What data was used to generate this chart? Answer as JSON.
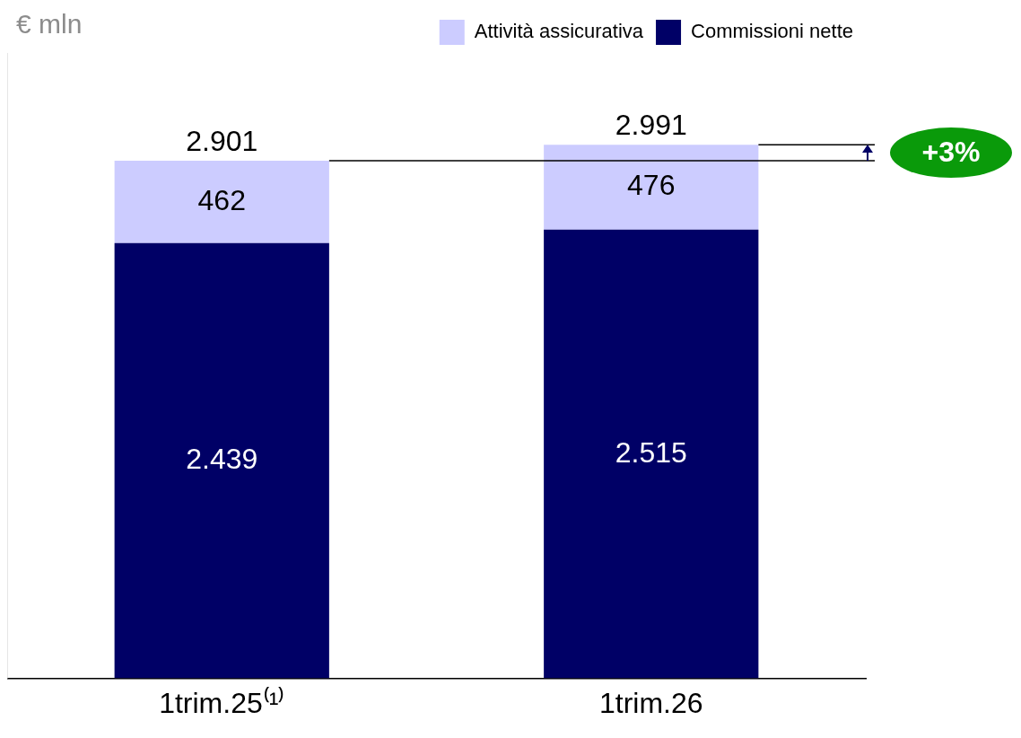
{
  "chart_data": {
    "type": "bar",
    "ylabel": "€ mln",
    "categories": [
      "1trim.25⁽¹⁾",
      "1trim.26"
    ],
    "stacked": true,
    "series": [
      {
        "name": "Commissioni nette",
        "color": "#000066",
        "values": [
          2439,
          2515
        ],
        "value_labels": [
          "2.439",
          "2.515"
        ]
      },
      {
        "name": "Attività assicurativa",
        "color": "#ccccff",
        "values": [
          462,
          476
        ],
        "value_labels": [
          "462",
          "476"
        ]
      }
    ],
    "totals": [
      "2.901",
      "2.991"
    ],
    "tick_labels": "x",
    "legend": "top right",
    "grid": false,
    "ref_lines": [
      {
        "axis": "y",
        "value": 2901,
        "color": "#000000"
      },
      {
        "axis": "y",
        "value": 2991,
        "color": "#000000"
      }
    ],
    "annotations": [
      "+3%"
    ]
  }
}
